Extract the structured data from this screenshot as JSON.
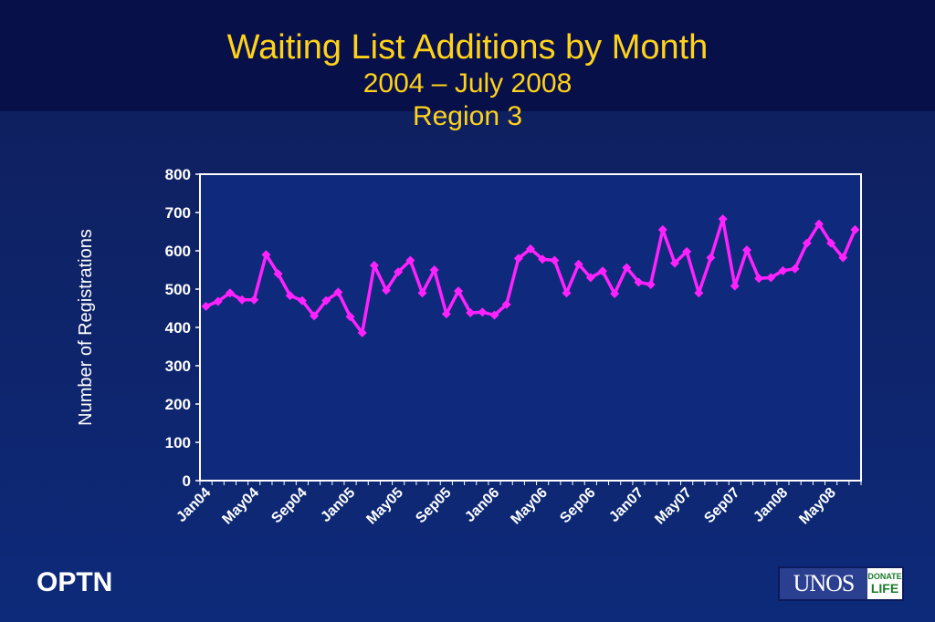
{
  "title": "Waiting List Additions by Month",
  "subtitle": "2004 – July 2008",
  "region": "Region 3",
  "footer": {
    "brand": "OPTN",
    "logo_text": "UNOS",
    "logo_badge_top": "DONATE",
    "logo_badge_bottom": "LIFE"
  },
  "colors": {
    "line": "#ff22ff",
    "title": "#ffd21a",
    "plot_bg": "#0f2a7c",
    "text": "#ffffff"
  },
  "chart_data": {
    "type": "line",
    "title": "Waiting List Additions by Month",
    "xlabel": "",
    "ylabel": "Number of Registrations",
    "ylim": [
      0,
      800
    ],
    "yticks": [
      0,
      100,
      200,
      300,
      400,
      500,
      600,
      700,
      800
    ],
    "grid": false,
    "x_tick_labels": [
      "Jan04",
      "May04",
      "Sep04",
      "Jan05",
      "May05",
      "Sep05",
      "Jan06",
      "May06",
      "Sep06",
      "Jan07",
      "May07",
      "Sep07",
      "Jan08",
      "May08"
    ],
    "x_tick_every": 4,
    "categories": [
      "Jan04",
      "Feb04",
      "Mar04",
      "Apr04",
      "May04",
      "Jun04",
      "Jul04",
      "Aug04",
      "Sep04",
      "Oct04",
      "Nov04",
      "Dec04",
      "Jan05",
      "Feb05",
      "Mar05",
      "Apr05",
      "May05",
      "Jun05",
      "Jul05",
      "Aug05",
      "Sep05",
      "Oct05",
      "Nov05",
      "Dec05",
      "Jan06",
      "Feb06",
      "Mar06",
      "Apr06",
      "May06",
      "Jun06",
      "Jul06",
      "Aug06",
      "Sep06",
      "Oct06",
      "Nov06",
      "Dec06",
      "Jan07",
      "Feb07",
      "Mar07",
      "Apr07",
      "May07",
      "Jun07",
      "Jul07",
      "Aug07",
      "Sep07",
      "Oct07",
      "Nov07",
      "Dec07",
      "Jan08",
      "Feb08",
      "Mar08",
      "Apr08",
      "May08",
      "Jun08",
      "Jul08"
    ],
    "series": [
      {
        "values": [
          455,
          468,
          490,
          472,
          472,
          590,
          540,
          483,
          470,
          430,
          470,
          492,
          428,
          386,
          562,
          497,
          545,
          575,
          490,
          550,
          435,
          495,
          438,
          440,
          432,
          460,
          580,
          605,
          578,
          575,
          490,
          565,
          530,
          547,
          488,
          556,
          518,
          512,
          655,
          568,
          598,
          490,
          582,
          683,
          508,
          602,
          528,
          530,
          548,
          553,
          620,
          670,
          620,
          582,
          655
        ]
      }
    ]
  }
}
